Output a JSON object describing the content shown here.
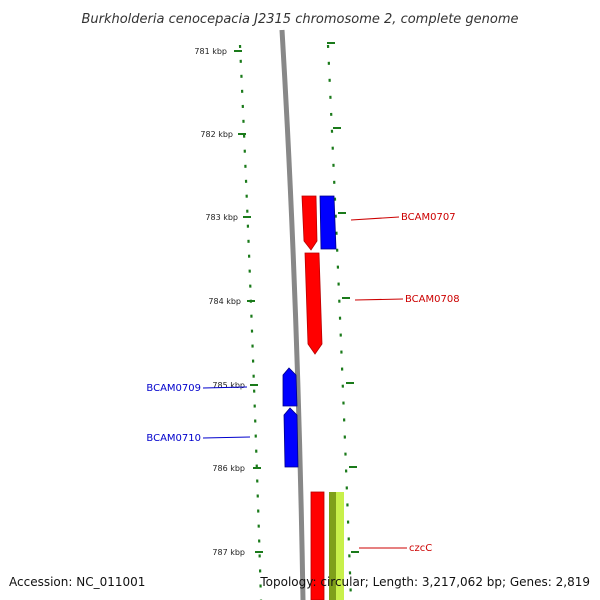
{
  "title": "Burkholderia cenocepacia J2315 chromosome 2, complete genome",
  "footer": {
    "accession": "Accession: NC_011001",
    "summary": "Topology: circular; Length: 3,217,062 bp; Genes: 2,819"
  },
  "colors": {
    "backbone": "#888888",
    "tick": "#1a7a1a",
    "forward_gene": "#ff0000",
    "reverse_gene": "#0000ff",
    "label_forward": "#cc0000",
    "label_reverse": "#0000cc",
    "feature_olive": "#7fa01a",
    "feature_lime": "#c8f04a"
  },
  "axis": {
    "unit": "kbp",
    "labels": [
      "781 kbp",
      "782 kbp",
      "783 kbp",
      "784 kbp",
      "785 kbp",
      "786 kbp",
      "787 kbp"
    ]
  },
  "genes": [
    {
      "label": "BCAM0707",
      "strand": "forward",
      "start_kbp": 783.0,
      "end_kbp": 783.65
    },
    {
      "label": "BCAM0708",
      "strand": "forward",
      "start_kbp": 783.45,
      "end_kbp": 784.6
    },
    {
      "label": "BCAM0709",
      "strand": "reverse",
      "start_kbp": 784.9,
      "end_kbp": 785.25
    },
    {
      "label": "BCAM0710",
      "strand": "reverse",
      "start_kbp": 785.3,
      "end_kbp": 786.0
    },
    {
      "label": "czcC",
      "strand": "forward",
      "start_kbp": 786.3,
      "end_kbp": 787.6
    }
  ]
}
